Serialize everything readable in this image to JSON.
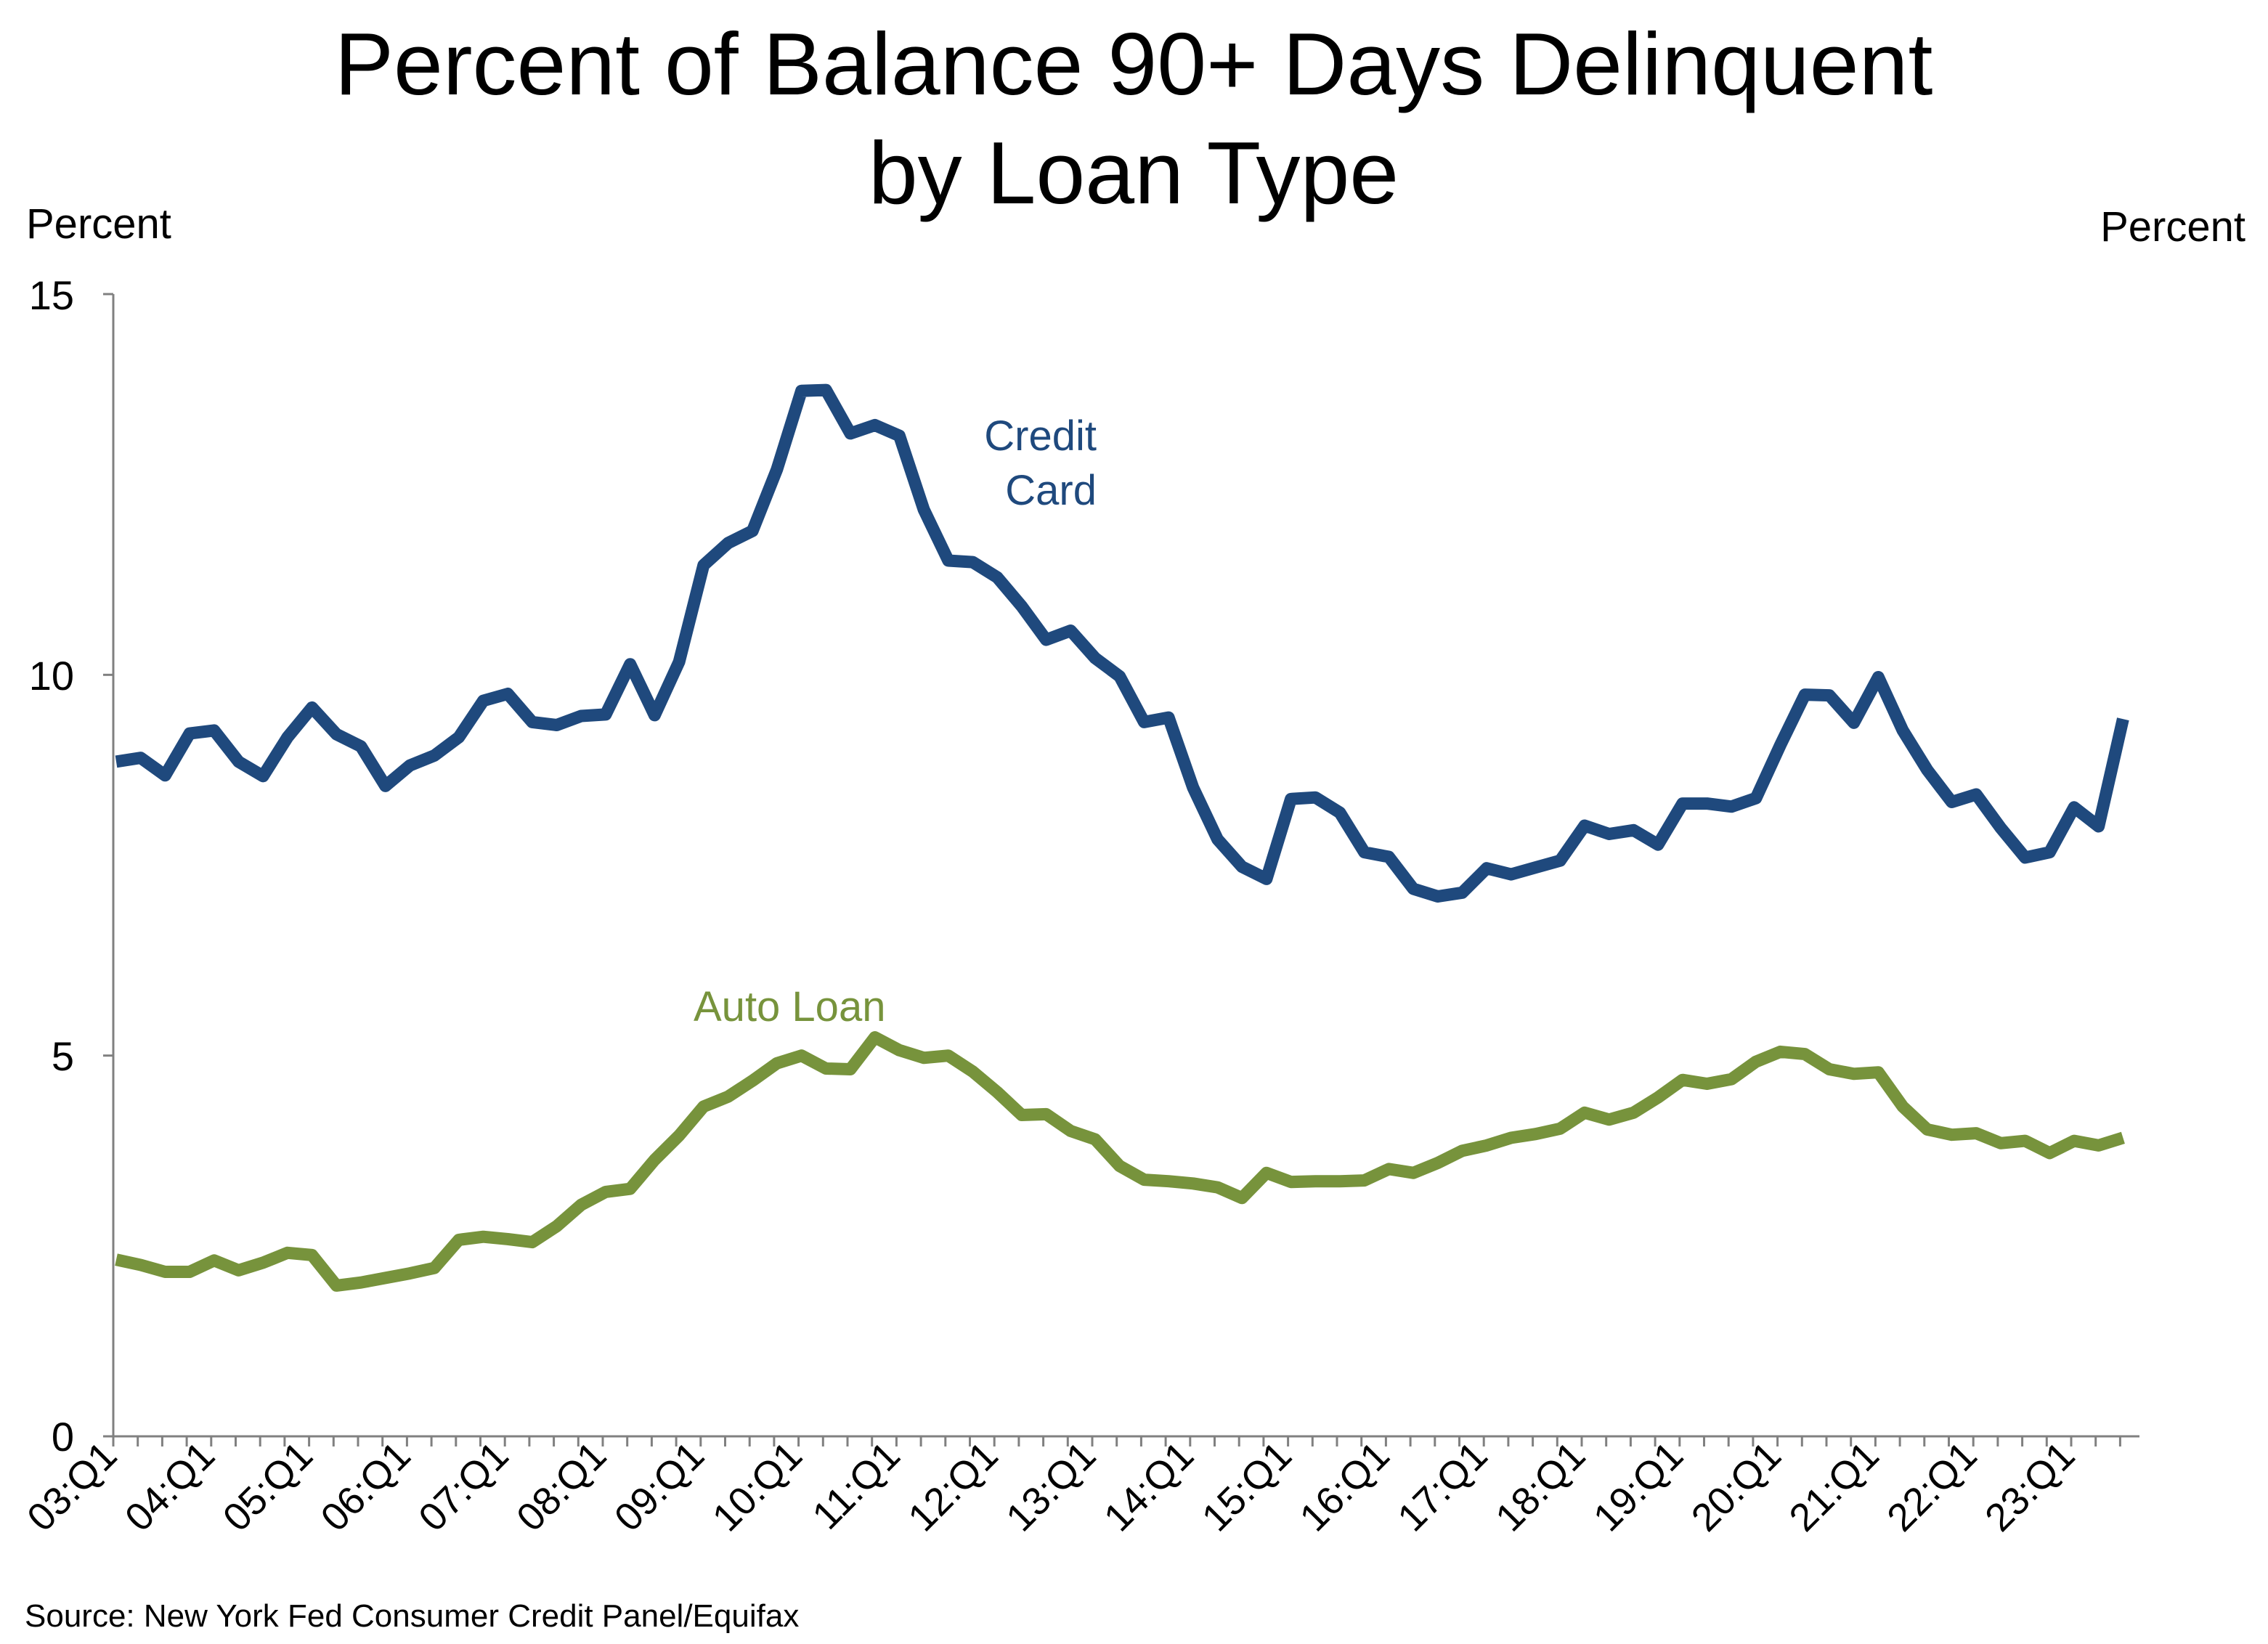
{
  "chart_data": {
    "type": "line",
    "title_lines": [
      "Percent of Balance 90+ Days Delinquent",
      "by Loan Type"
    ],
    "left_unit_label": "Percent",
    "right_unit_label": "Percent",
    "source": "Source: New York Fed Consumer Credit Panel/Equifax",
    "ylim": [
      0,
      15
    ],
    "yticks": [
      0,
      5,
      10,
      15
    ],
    "ytick_labels": [
      "0",
      "5",
      "10",
      "15"
    ],
    "xlabels": [
      "03:Q1",
      "04:Q1",
      "05:Q1",
      "06:Q1",
      "07:Q1",
      "08:Q1",
      "09:Q1",
      "10:Q1",
      "11:Q1",
      "12:Q1",
      "13:Q1",
      "14:Q1",
      "15:Q1",
      "16:Q1",
      "17:Q1",
      "18:Q1",
      "19:Q1",
      "20:Q1",
      "21:Q1",
      "22:Q1",
      "23:Q1"
    ],
    "x_range": "2003:Q1 - 2023:Q3",
    "grid": false,
    "legend": "inline labels",
    "series": [
      {
        "name": "Credit Card",
        "label_lines": [
          "Credit",
          "Card"
        ],
        "color": "#1F497D",
        "values": [
          8.86,
          8.91,
          8.68,
          9.23,
          9.27,
          8.86,
          8.67,
          9.18,
          9.57,
          9.22,
          9.06,
          8.54,
          8.81,
          8.94,
          9.18,
          9.66,
          9.75,
          9.38,
          9.34,
          9.46,
          9.48,
          10.14,
          9.47,
          10.17,
          11.44,
          11.73,
          11.89,
          12.7,
          13.73,
          13.74,
          13.17,
          13.28,
          13.14,
          12.17,
          11.5,
          11.48,
          11.28,
          10.9,
          10.46,
          10.58,
          10.22,
          9.98,
          9.38,
          9.44,
          8.52,
          7.84,
          7.48,
          7.32,
          8.37,
          8.39,
          8.19,
          7.67,
          7.61,
          7.19,
          7.09,
          7.14,
          7.46,
          7.38,
          7.47,
          7.56,
          8.02,
          7.91,
          7.96,
          7.77,
          8.31,
          8.31,
          8.27,
          8.38,
          9.08,
          9.74,
          9.73,
          9.37,
          9.97,
          9.27,
          8.75,
          8.33,
          8.43,
          7.99,
          7.6,
          7.67,
          8.26,
          8.01,
          9.42
        ]
      },
      {
        "name": "Auto Loan",
        "label_lines": [
          "Auto Loan"
        ],
        "color": "#77933C",
        "values": [
          2.32,
          2.25,
          2.16,
          2.16,
          2.31,
          2.18,
          2.28,
          2.41,
          2.38,
          1.98,
          2.02,
          2.08,
          2.14,
          2.21,
          2.58,
          2.62,
          2.59,
          2.55,
          2.76,
          3.04,
          3.21,
          3.25,
          3.63,
          3.95,
          4.33,
          4.46,
          4.67,
          4.9,
          5.0,
          4.83,
          4.82,
          5.24,
          5.07,
          4.97,
          5.0,
          4.79,
          4.52,
          4.22,
          4.23,
          4.01,
          3.9,
          3.55,
          3.37,
          3.35,
          3.32,
          3.27,
          3.13,
          3.46,
          3.34,
          3.35,
          3.35,
          3.36,
          3.51,
          3.46,
          3.59,
          3.75,
          3.82,
          3.92,
          3.97,
          4.04,
          4.25,
          4.16,
          4.25,
          4.45,
          4.68,
          4.63,
          4.69,
          4.92,
          5.05,
          5.02,
          4.82,
          4.76,
          4.78,
          4.33,
          4.03,
          3.96,
          3.98,
          3.85,
          3.88,
          3.72,
          3.88,
          3.82,
          3.92
        ]
      }
    ]
  }
}
